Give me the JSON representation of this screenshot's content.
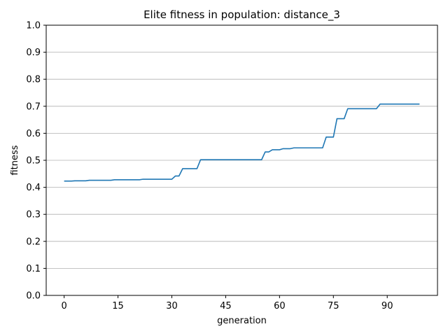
{
  "chart_data": {
    "type": "line",
    "title": "Elite fitness in population: distance_3",
    "xlabel": "generation",
    "ylabel": "fitness",
    "xlim": [
      -5,
      104
    ],
    "ylim": [
      0.0,
      1.0
    ],
    "xticks": [
      0,
      15,
      30,
      45,
      60,
      75,
      90
    ],
    "yticks": [
      0.0,
      0.1,
      0.2,
      0.3,
      0.4,
      0.5,
      0.6,
      0.7,
      0.8,
      0.9,
      1.0
    ],
    "ytick_labels": [
      "0.0",
      "0.1",
      "0.2",
      "0.3",
      "0.4",
      "0.5",
      "0.6",
      "0.7",
      "0.8",
      "0.9",
      "1.0"
    ],
    "grid": "horizontal",
    "series_color": "#1f77b4",
    "series": [
      {
        "x": [
          0,
          2,
          3,
          4,
          6,
          7,
          8,
          13,
          14,
          21,
          22,
          30,
          31,
          32,
          33,
          36,
          37,
          38,
          55,
          56,
          57,
          58,
          60,
          61,
          63,
          64,
          72,
          73,
          75,
          76,
          78,
          79,
          87,
          88,
          99
        ],
        "y": [
          0.423,
          0.423,
          0.424,
          0.424,
          0.424,
          0.426,
          0.426,
          0.426,
          0.428,
          0.428,
          0.43,
          0.43,
          0.442,
          0.442,
          0.469,
          0.469,
          0.469,
          0.502,
          0.502,
          0.531,
          0.531,
          0.539,
          0.539,
          0.543,
          0.543,
          0.546,
          0.546,
          0.586,
          0.586,
          0.654,
          0.654,
          0.691,
          0.691,
          0.708,
          0.708
        ]
      }
    ]
  }
}
